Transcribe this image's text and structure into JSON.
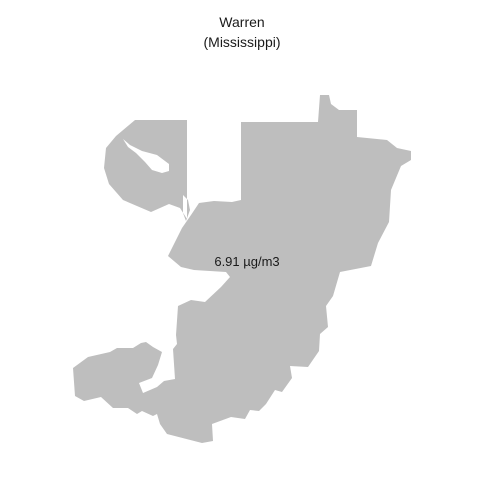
{
  "map": {
    "title": "Warren",
    "subtitle": "(Mississippi)",
    "value_label": "6.91 µg/m3",
    "fill_color": "#bebebe",
    "background_color": "#ffffff"
  }
}
